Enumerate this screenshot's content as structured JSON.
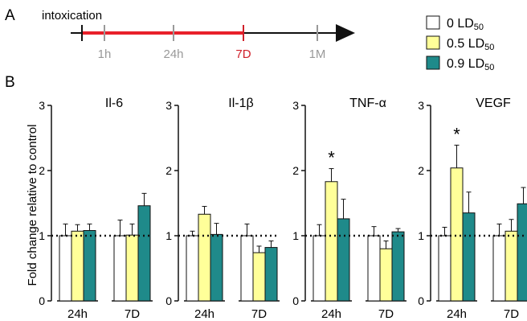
{
  "panel_labels": {
    "a": "A",
    "b": "B"
  },
  "timeline": {
    "start_label": "intoxication",
    "ticks": [
      "1h",
      "24h",
      "7D",
      "1M"
    ],
    "tick_colors": [
      "#999999",
      "#999999",
      "#d0202a",
      "#999999"
    ],
    "line_color": "#111111",
    "highlight_color": "#e8202a"
  },
  "legend": [
    {
      "label": "0 LD50",
      "color": "#ffffff"
    },
    {
      "label": "0.5 LD50",
      "color": "#ffff99"
    },
    {
      "label": "0.9 LD50",
      "color": "#1f8a8a"
    }
  ],
  "colors": {
    "series": [
      "#ffffff",
      "#ffff99",
      "#1f8a8a"
    ],
    "stroke": "#111111"
  },
  "chart_data": [
    {
      "type": "bar",
      "title": "Il-6",
      "ylabel": "Fold change relative to control",
      "categories": [
        "24h",
        "7D"
      ],
      "ylim": [
        0,
        3
      ],
      "yticks": [
        "0",
        "1",
        "2",
        "3"
      ],
      "reference_line": 1,
      "series": [
        {
          "name": "0 LD50",
          "values": [
            1.0,
            1.0
          ],
          "errors": [
            0.18,
            0.24
          ]
        },
        {
          "name": "0.5 LD50",
          "values": [
            1.07,
            1.01
          ],
          "errors": [
            0.1,
            0.17
          ]
        },
        {
          "name": "0.9 LD50",
          "values": [
            1.08,
            1.46
          ],
          "errors": [
            0.1,
            0.19
          ]
        }
      ],
      "significance": []
    },
    {
      "type": "bar",
      "title": "Il-1β",
      "categories": [
        "24h",
        "7D"
      ],
      "ylim": [
        0,
        3
      ],
      "yticks": [
        "0",
        "1",
        "2",
        "3"
      ],
      "reference_line": 1,
      "series": [
        {
          "name": "0 LD50",
          "values": [
            1.0,
            1.0
          ],
          "errors": [
            0.07,
            0.18
          ]
        },
        {
          "name": "0.5 LD50",
          "values": [
            1.33,
            0.74
          ],
          "errors": [
            0.12,
            0.1
          ]
        },
        {
          "name": "0.9 LD50",
          "values": [
            1.02,
            0.82
          ],
          "errors": [
            0.17,
            0.1
          ]
        }
      ],
      "significance": []
    },
    {
      "type": "bar",
      "title": "TNF-α",
      "categories": [
        "24h",
        "7D"
      ],
      "ylim": [
        0,
        3
      ],
      "yticks": [
        "0",
        "1",
        "2",
        "3"
      ],
      "reference_line": 1,
      "series": [
        {
          "name": "0 LD50",
          "values": [
            1.0,
            1.0
          ],
          "errors": [
            0.17,
            0.14
          ]
        },
        {
          "name": "0.5 LD50",
          "values": [
            1.83,
            0.8
          ],
          "errors": [
            0.2,
            0.12
          ]
        },
        {
          "name": "0.9 LD50",
          "values": [
            1.26,
            1.06
          ],
          "errors": [
            0.3,
            0.05
          ]
        }
      ],
      "significance": [
        {
          "category": "24h",
          "series": "0.5 LD50",
          "label": "*"
        }
      ]
    },
    {
      "type": "bar",
      "title": "VEGF",
      "categories": [
        "24h",
        "7D"
      ],
      "ylim": [
        0,
        3
      ],
      "yticks": [
        "0",
        "1",
        "2",
        "3"
      ],
      "reference_line": 1,
      "series": [
        {
          "name": "0 LD50",
          "values": [
            1.0,
            1.0
          ],
          "errors": [
            0.13,
            0.18
          ]
        },
        {
          "name": "0.5 LD50",
          "values": [
            2.04,
            1.07
          ],
          "errors": [
            0.35,
            0.18
          ]
        },
        {
          "name": "0.9 LD50",
          "values": [
            1.35,
            1.49
          ],
          "errors": [
            0.32,
            0.25
          ]
        }
      ],
      "significance": [
        {
          "category": "24h",
          "series": "0.5 LD50",
          "label": "*"
        }
      ]
    }
  ]
}
